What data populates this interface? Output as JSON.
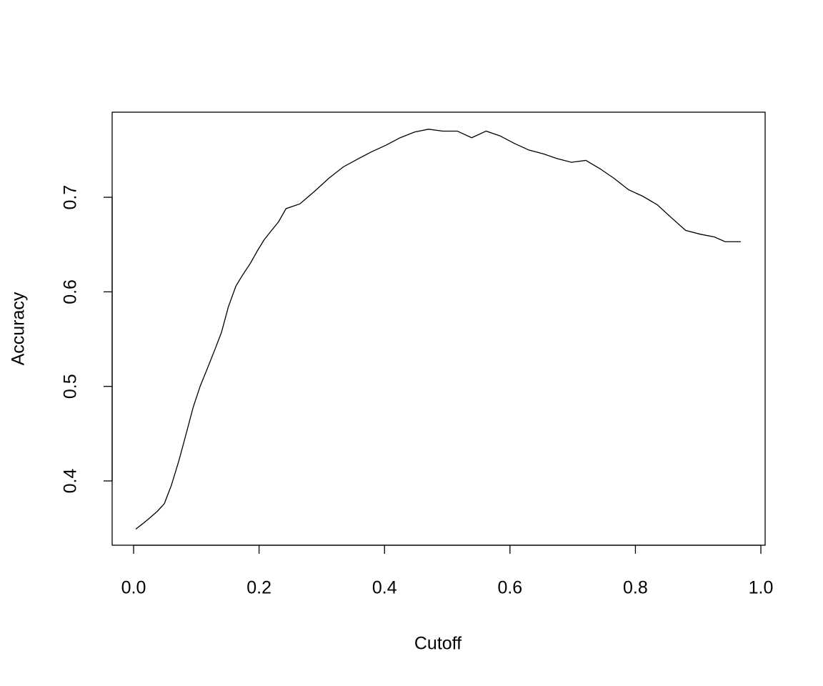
{
  "chart_data": {
    "type": "line",
    "x_label": "Cutoff",
    "y_label": "Accuracy",
    "x": [
      0.0034,
      0.015,
      0.026,
      0.038,
      0.049,
      0.06,
      0.072,
      0.083,
      0.095,
      0.106,
      0.117,
      0.129,
      0.14,
      0.151,
      0.163,
      0.174,
      0.186,
      0.197,
      0.208,
      0.22,
      0.231,
      0.243,
      0.265,
      0.288,
      0.311,
      0.334,
      0.356,
      0.379,
      0.402,
      0.425,
      0.448,
      0.47,
      0.493,
      0.516,
      0.539,
      0.562,
      0.584,
      0.607,
      0.63,
      0.653,
      0.675,
      0.698,
      0.721,
      0.744,
      0.766,
      0.789,
      0.812,
      0.835,
      0.858,
      0.88,
      0.903,
      0.926,
      0.943,
      0.968
    ],
    "series": [
      {
        "color": "#000000",
        "values": [
          0.349,
          0.355,
          0.361,
          0.368,
          0.376,
          0.395,
          0.421,
          0.448,
          0.478,
          0.5,
          0.518,
          0.538,
          0.557,
          0.584,
          0.606,
          0.618,
          0.63,
          0.643,
          0.655,
          0.665,
          0.674,
          0.688,
          0.693,
          0.706,
          0.72,
          0.732,
          0.74,
          0.748,
          0.755,
          0.763,
          0.769,
          0.772,
          0.77,
          0.77,
          0.763,
          0.77,
          0.765,
          0.757,
          0.75,
          0.746,
          0.741,
          0.737,
          0.739,
          0.73,
          0.72,
          0.708,
          0.701,
          0.692,
          0.678,
          0.665,
          0.661,
          0.658,
          0.653,
          0.653
        ]
      }
    ],
    "xlim": [
      -0.0342,
      1.0068
    ],
    "ylim": [
      0.332,
      0.79
    ],
    "xticks": [
      {
        "value": 0,
        "label": "0.0"
      },
      0.2,
      0.4,
      0.6,
      0.8,
      {
        "value": 1,
        "label": "1.0"
      }
    ],
    "yticks": [
      0.4,
      0.5,
      0.6,
      0.7
    ]
  }
}
